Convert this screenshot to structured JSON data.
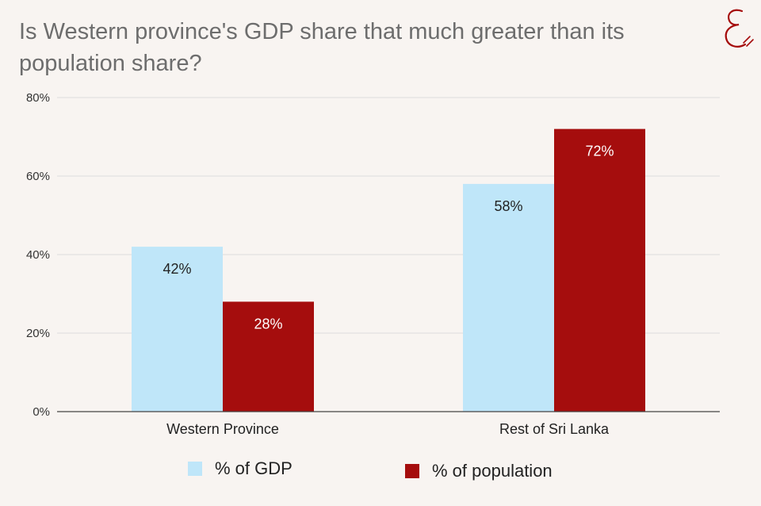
{
  "title": "Is Western province's GDP share that much greater than its population share?",
  "logo": {
    "icon": "stylized-E-logo-icon",
    "color": "#a50d0d"
  },
  "colors": {
    "gdp": "#bfe6f9",
    "population": "#a50d0d",
    "grid": "#dddddd",
    "axis": "#444444",
    "background": "#f8f4f1"
  },
  "chart_data": {
    "type": "bar",
    "title": "Is Western province's GDP share that much greater than its population share?",
    "categories": [
      "Western Province",
      "Rest of Sri Lanka"
    ],
    "series": [
      {
        "name": "% of GDP",
        "values": [
          42,
          58
        ],
        "labels": [
          "42%",
          "58%"
        ],
        "color": "#bfe6f9"
      },
      {
        "name": "% of population",
        "values": [
          28,
          72
        ],
        "labels": [
          "28%",
          "72%"
        ],
        "color": "#a50d0d"
      }
    ],
    "y_ticks": [
      "0%",
      "20%",
      "40%",
      "60%",
      "80%"
    ],
    "ylim": [
      0,
      80
    ],
    "xlabel": "",
    "ylabel": "",
    "grid": true,
    "legend": "bottom"
  }
}
